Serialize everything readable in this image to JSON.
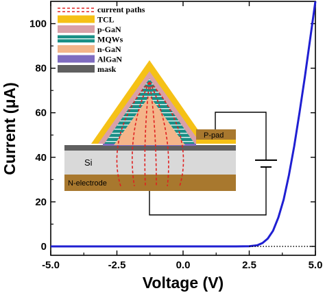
{
  "chart_data": {
    "type": "line",
    "xlabel": "Voltage (V)",
    "ylabel": "Current (μA)",
    "xlim": [
      -5.0,
      5.0
    ],
    "ylim": [
      -4,
      110
    ],
    "xticks": [
      -5.0,
      -2.5,
      0.0,
      2.5,
      5.0
    ],
    "xtick_labels": [
      "-5.0",
      "-2.5",
      "0.0",
      "2.5",
      "5.0"
    ],
    "yticks": [
      0,
      20,
      40,
      60,
      80,
      100
    ],
    "ytick_labels": [
      "0",
      "20",
      "40",
      "60",
      "80",
      "100"
    ],
    "grid": false,
    "series": [
      {
        "style": "solid",
        "color": "#1f1fd2",
        "x": [
          -5.0,
          -2.5,
          0.0,
          2.0,
          2.5,
          2.8,
          3.0,
          3.2,
          3.4,
          3.6,
          3.8,
          4.0,
          4.2,
          4.4,
          4.6,
          4.8,
          5.0
        ],
        "y": [
          0,
          0,
          0,
          0,
          0.1,
          0.5,
          1.5,
          3.5,
          7,
          13,
          21,
          32,
          45,
          60,
          76,
          93,
          110
        ]
      },
      {
        "style": "dotted",
        "color": "#000000",
        "x": [
          2.5,
          5.0
        ],
        "y": [
          0,
          0
        ]
      }
    ],
    "legend": {
      "placement": "top-left inset",
      "entries": [
        {
          "label": "current paths",
          "color": "#e02020",
          "kind": "dashed"
        },
        {
          "label": "TCL",
          "color": "#f5c116",
          "kind": "swatch"
        },
        {
          "label": "p-GaN",
          "color": "#d9a0a8",
          "kind": "swatch"
        },
        {
          "label": "MQWs",
          "color": "#1a8f86",
          "kind": "striped"
        },
        {
          "label": "n-GaN",
          "color": "#f4b58a",
          "kind": "swatch"
        },
        {
          "label": "AlGaN",
          "color": "#7f6cc0",
          "kind": "swatch"
        },
        {
          "label": "mask",
          "color": "#606060",
          "kind": "swatch"
        }
      ]
    },
    "inset_labels": {
      "si": "Si",
      "n_electrode": "N-electrode",
      "p_pad": "P-pad"
    }
  }
}
